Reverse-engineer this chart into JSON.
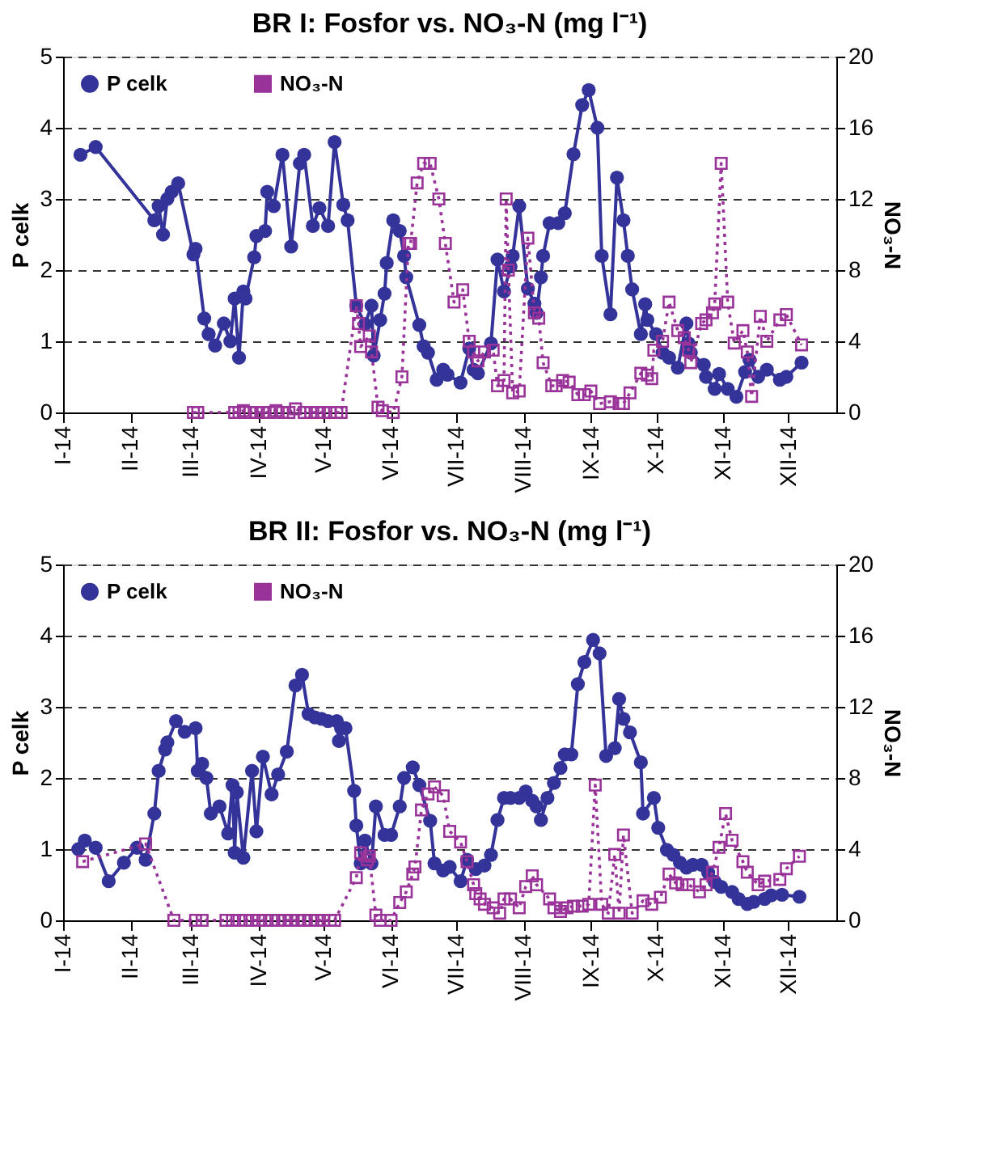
{
  "chart_data": [
    {
      "type": "line",
      "title": "BR I: Fosfor vs. NO₃-N  (mg l⁻¹)",
      "ylabel": "P celk",
      "y2label": "NO₃-N",
      "xlim": [
        "2014-01-01",
        "2014-12-23"
      ],
      "xticks": [
        {
          "value": "2014-01-01",
          "label": "I-14"
        },
        {
          "value": "2014-02-01",
          "label": "II-14"
        },
        {
          "value": "2014-03-01",
          "label": "III-14"
        },
        {
          "value": "2014-04-01",
          "label": "IV-14"
        },
        {
          "value": "2014-05-01",
          "label": "V-14"
        },
        {
          "value": "2014-06-01",
          "label": "VI-14"
        },
        {
          "value": "2014-07-01",
          "label": "VII-14"
        },
        {
          "value": "2014-08-01",
          "label": "VIII-14"
        },
        {
          "value": "2014-09-01",
          "label": "IX-14"
        },
        {
          "value": "2014-10-01",
          "label": "X-14"
        },
        {
          "value": "2014-11-01",
          "label": "XI-14"
        },
        {
          "value": "2014-12-01",
          "label": "XII-14"
        }
      ],
      "ylim": [
        0,
        5
      ],
      "yticks": [
        0,
        1,
        2,
        3,
        4,
        5
      ],
      "y2lim": [
        0,
        20
      ],
      "y2ticks": [
        0,
        4,
        8,
        12,
        16,
        20
      ],
      "grid": "y",
      "legend": "top left",
      "series": [
        {
          "name": "P celk",
          "color": "#333399",
          "marker": "circle",
          "line_style": "solid",
          "axis": "y",
          "x": [
            "2014-01-09",
            "2014-01-16",
            "2014-02-12",
            "2014-02-14",
            "2014-02-16",
            "2014-02-18",
            "2014-02-20",
            "2014-02-23",
            "2014-03-02",
            "2014-03-03",
            "2014-03-07",
            "2014-03-09",
            "2014-03-12",
            "2014-03-16",
            "2014-03-19",
            "2014-03-21",
            "2014-03-23",
            "2014-03-25",
            "2014-03-26",
            "2014-03-30",
            "2014-03-31",
            "2014-04-04",
            "2014-04-05",
            "2014-04-08",
            "2014-04-12",
            "2014-04-16",
            "2014-04-20",
            "2014-04-22",
            "2014-04-26",
            "2014-04-29",
            "2014-05-03",
            "2014-05-06",
            "2014-05-10",
            "2014-05-12",
            "2014-05-16",
            "2014-05-20",
            "2014-05-23",
            "2014-05-24",
            "2014-05-27",
            "2014-05-29",
            "2014-05-30",
            "2014-06-02",
            "2014-06-05",
            "2014-06-07",
            "2014-06-08",
            "2014-06-14",
            "2014-06-16",
            "2014-06-18",
            "2014-06-22",
            "2014-06-25",
            "2014-06-27",
            "2014-07-03",
            "2014-07-07",
            "2014-07-09",
            "2014-07-11",
            "2014-07-17",
            "2014-07-20",
            "2014-07-23",
            "2014-07-26",
            "2014-07-27",
            "2014-07-30",
            "2014-08-03",
            "2014-08-06",
            "2014-08-07",
            "2014-08-09",
            "2014-08-10",
            "2014-08-13",
            "2014-08-17",
            "2014-08-20",
            "2014-08-24",
            "2014-08-28",
            "2014-08-31",
            "2014-09-04",
            "2014-09-06",
            "2014-09-10",
            "2014-09-13",
            "2014-09-16",
            "2014-09-18",
            "2014-09-20",
            "2014-09-24",
            "2014-09-26",
            "2014-09-27",
            "2014-10-01",
            "2014-10-04",
            "2014-10-07",
            "2014-10-11",
            "2014-10-15",
            "2014-10-16",
            "2014-10-17",
            "2014-10-23",
            "2014-10-24",
            "2014-10-28",
            "2014-10-30",
            "2014-11-03",
            "2014-11-07",
            "2014-11-11",
            "2014-11-13",
            "2014-11-17",
            "2014-11-21",
            "2014-11-27",
            "2014-11-30",
            "2014-12-07"
          ],
          "values": [
            3.62,
            3.73,
            2.7,
            2.9,
            2.5,
            3.0,
            3.1,
            3.22,
            2.22,
            2.3,
            1.32,
            1.1,
            0.94,
            1.25,
            1.0,
            1.6,
            0.77,
            1.7,
            1.6,
            2.18,
            2.48,
            2.55,
            3.1,
            2.9,
            3.62,
            2.33,
            3.5,
            3.62,
            2.62,
            2.87,
            2.62,
            3.8,
            2.92,
            2.7,
            1.5,
            1.24,
            1.5,
            0.8,
            1.3,
            1.67,
            2.1,
            2.7,
            2.55,
            2.2,
            1.9,
            1.23,
            0.93,
            0.84,
            0.46,
            0.6,
            0.53,
            0.42,
            0.9,
            0.6,
            0.55,
            0.97,
            2.15,
            1.7,
            2.05,
            2.2,
            2.9,
            1.74,
            1.53,
            1.4,
            1.9,
            2.2,
            2.66,
            2.66,
            2.8,
            3.63,
            4.32,
            4.53,
            4.0,
            2.2,
            1.38,
            3.3,
            2.7,
            2.2,
            1.73,
            1.1,
            1.52,
            1.3,
            1.1,
            0.84,
            0.77,
            0.63,
            1.25,
            0.97,
            0.84,
            0.67,
            0.5,
            0.33,
            0.54,
            0.33,
            0.22,
            0.57,
            0.74,
            0.5,
            0.6,
            0.46,
            0.5,
            0.7
          ]
        },
        {
          "name": "NO₃-N",
          "color": "#993399",
          "marker": "square",
          "line_style": "dotted",
          "axis": "y2",
          "x": [
            "2014-03-02",
            "2014-03-04",
            "2014-03-21",
            "2014-03-23",
            "2014-03-25",
            "2014-03-28",
            "2014-03-31",
            "2014-04-03",
            "2014-04-06",
            "2014-04-09",
            "2014-04-12",
            "2014-04-15",
            "2014-04-18",
            "2014-04-22",
            "2014-04-25",
            "2014-04-28",
            "2014-05-01",
            "2014-05-04",
            "2014-05-07",
            "2014-05-09",
            "2014-05-16",
            "2014-05-17",
            "2014-05-18",
            "2014-05-22",
            "2014-05-23",
            "2014-05-26",
            "2014-05-28",
            "2014-06-02",
            "2014-06-06",
            "2014-06-09",
            "2014-06-10",
            "2014-06-13",
            "2014-06-16",
            "2014-06-19",
            "2014-06-23",
            "2014-06-26",
            "2014-06-30",
            "2014-07-04",
            "2014-07-07",
            "2014-07-09",
            "2014-07-11",
            "2014-07-14",
            "2014-07-18",
            "2014-07-20",
            "2014-07-23",
            "2014-07-24",
            "2014-07-25",
            "2014-07-27",
            "2014-07-30",
            "2014-08-03",
            "2014-08-06",
            "2014-08-08",
            "2014-08-10",
            "2014-08-14",
            "2014-08-16",
            "2014-08-19",
            "2014-08-22",
            "2014-08-26",
            "2014-08-29",
            "2014-09-01",
            "2014-09-05",
            "2014-09-10",
            "2014-09-14",
            "2014-09-16",
            "2014-09-19",
            "2014-09-24",
            "2014-09-27",
            "2014-09-29",
            "2014-09-30",
            "2014-10-04",
            "2014-10-07",
            "2014-10-11",
            "2014-10-14",
            "2014-10-16",
            "2014-10-17",
            "2014-10-22",
            "2014-10-24",
            "2014-10-27",
            "2014-10-28",
            "2014-10-31",
            "2014-11-03",
            "2014-11-06",
            "2014-11-10",
            "2014-11-12",
            "2014-11-14",
            "2014-11-18",
            "2014-11-21",
            "2014-11-27",
            "2014-11-30",
            "2014-12-07"
          ],
          "values": [
            0,
            0,
            0,
            0,
            0.1,
            0,
            0,
            0,
            0,
            0.1,
            0,
            0,
            0.2,
            0,
            0,
            0,
            0,
            0,
            0,
            0,
            6.0,
            5.0,
            3.7,
            4.3,
            3.4,
            0.3,
            0.1,
            0,
            2.0,
            9.5,
            9.5,
            12.9,
            14.0,
            14.0,
            12.0,
            9.5,
            6.2,
            6.9,
            4.0,
            3.4,
            2.9,
            3.4,
            3.5,
            1.5,
            1.8,
            12.0,
            8.0,
            1.1,
            1.2,
            9.8,
            5.6,
            5.3,
            2.8,
            1.5,
            1.5,
            1.8,
            1.7,
            1.0,
            1.0,
            1.2,
            0.5,
            0.6,
            0.5,
            0.5,
            1.1,
            2.2,
            2.1,
            1.9,
            3.5,
            4.0,
            6.2,
            4.6,
            4.2,
            3.5,
            2.8,
            5.0,
            5.2,
            5.6,
            6.1,
            14.0,
            6.2,
            3.9,
            4.6,
            3.4,
            0.9,
            5.4,
            4.0,
            5.2,
            5.5,
            3.8
          ]
        }
      ]
    },
    {
      "type": "line",
      "title": "BR II: Fosfor vs. NO₃-N  (mg l⁻¹)",
      "ylabel": "P celk",
      "y2label": "NO₃-N",
      "xlim": [
        "2014-01-01",
        "2014-12-23"
      ],
      "xticks": [
        {
          "value": "2014-01-01",
          "label": "I-14"
        },
        {
          "value": "2014-02-01",
          "label": "II-14"
        },
        {
          "value": "2014-03-01",
          "label": "III-14"
        },
        {
          "value": "2014-04-01",
          "label": "IV-14"
        },
        {
          "value": "2014-05-01",
          "label": "V-14"
        },
        {
          "value": "2014-06-01",
          "label": "VI-14"
        },
        {
          "value": "2014-07-01",
          "label": "VII-14"
        },
        {
          "value": "2014-08-01",
          "label": "VIII-14"
        },
        {
          "value": "2014-09-01",
          "label": "IX-14"
        },
        {
          "value": "2014-10-01",
          "label": "X-14"
        },
        {
          "value": "2014-11-01",
          "label": "XI-14"
        },
        {
          "value": "2014-12-01",
          "label": "XII-14"
        }
      ],
      "ylim": [
        0,
        5
      ],
      "yticks": [
        0,
        1,
        2,
        3,
        4,
        5
      ],
      "y2lim": [
        0,
        20
      ],
      "y2ticks": [
        0,
        4,
        8,
        12,
        16,
        20
      ],
      "grid": "y",
      "legend": "top left",
      "series": [
        {
          "name": "P celk",
          "color": "#333399",
          "marker": "circle",
          "line_style": "solid",
          "axis": "y",
          "x": [
            "2014-01-08",
            "2014-01-11",
            "2014-01-16",
            "2014-01-22",
            "2014-01-29",
            "2014-02-04",
            "2014-02-08",
            "2014-02-12",
            "2014-02-14",
            "2014-02-17",
            "2014-02-18",
            "2014-02-22",
            "2014-02-26",
            "2014-03-03",
            "2014-03-04",
            "2014-03-06",
            "2014-03-08",
            "2014-03-10",
            "2014-03-14",
            "2014-03-18",
            "2014-03-20",
            "2014-03-21",
            "2014-03-22",
            "2014-03-25",
            "2014-03-29",
            "2014-03-31",
            "2014-04-03",
            "2014-04-07",
            "2014-04-10",
            "2014-04-14",
            "2014-04-18",
            "2014-04-21",
            "2014-04-24",
            "2014-04-27",
            "2014-04-30",
            "2014-05-03",
            "2014-05-07",
            "2014-05-08",
            "2014-05-09",
            "2014-05-11",
            "2014-05-15",
            "2014-05-16",
            "2014-05-18",
            "2014-05-20",
            "2014-05-23",
            "2014-05-25",
            "2014-05-29",
            "2014-06-01",
            "2014-06-05",
            "2014-06-07",
            "2014-06-11",
            "2014-06-14",
            "2014-06-19",
            "2014-06-21",
            "2014-06-25",
            "2014-06-28",
            "2014-07-03",
            "2014-07-06",
            "2014-07-10",
            "2014-07-14",
            "2014-07-17",
            "2014-07-20",
            "2014-07-23",
            "2014-07-26",
            "2014-07-30",
            "2014-08-02",
            "2014-08-05",
            "2014-08-07",
            "2014-08-09",
            "2014-08-12",
            "2014-08-15",
            "2014-08-18",
            "2014-08-20",
            "2014-08-23",
            "2014-08-26",
            "2014-08-29",
            "2014-09-02",
            "2014-09-05",
            "2014-09-08",
            "2014-09-12",
            "2014-09-14",
            "2014-09-16",
            "2014-09-19",
            "2014-09-24",
            "2014-09-25",
            "2014-09-30",
            "2014-10-02",
            "2014-10-06",
            "2014-10-09",
            "2014-10-12",
            "2014-10-15",
            "2014-10-18",
            "2014-10-22",
            "2014-10-25",
            "2014-10-28",
            "2014-10-31",
            "2014-11-05",
            "2014-11-08",
            "2014-11-12",
            "2014-11-15",
            "2014-11-20",
            "2014-11-23",
            "2014-11-28",
            "2014-12-06"
          ],
          "values": [
            1.0,
            1.12,
            1.02,
            0.55,
            0.81,
            1.02,
            0.85,
            1.5,
            2.1,
            2.4,
            2.5,
            2.8,
            2.65,
            2.7,
            2.1,
            2.2,
            2.0,
            1.5,
            1.6,
            1.22,
            1.9,
            0.95,
            1.8,
            0.88,
            2.1,
            1.25,
            2.3,
            1.77,
            2.05,
            2.37,
            3.3,
            3.45,
            2.9,
            2.85,
            2.83,
            2.8,
            2.8,
            2.52,
            2.7,
            2.7,
            1.82,
            1.33,
            0.8,
            1.12,
            0.8,
            1.6,
            1.2,
            1.2,
            1.6,
            2.0,
            2.15,
            1.9,
            1.4,
            0.8,
            0.7,
            0.75,
            0.55,
            0.85,
            0.72,
            0.77,
            0.92,
            1.41,
            1.72,
            1.72,
            1.72,
            1.81,
            1.68,
            1.6,
            1.41,
            1.72,
            1.93,
            2.14,
            2.33,
            2.33,
            3.32,
            3.63,
            3.94,
            3.75,
            2.31,
            2.42,
            3.11,
            2.83,
            2.64,
            2.22,
            1.5,
            1.72,
            1.3,
            0.99,
            0.92,
            0.81,
            0.74,
            0.78,
            0.78,
            0.67,
            0.54,
            0.47,
            0.4,
            0.3,
            0.23,
            0.26,
            0.3,
            0.35,
            0.36,
            0.33
          ]
        },
        {
          "name": "NO₃-N",
          "color": "#993399",
          "marker": "square",
          "line_style": "dotted",
          "axis": "y2",
          "x": [
            "2014-01-10",
            "2014-02-08",
            "2014-02-21",
            "2014-03-03",
            "2014-03-06",
            "2014-03-17",
            "2014-03-20",
            "2014-03-23",
            "2014-03-26",
            "2014-03-29",
            "2014-04-01",
            "2014-04-04",
            "2014-04-07",
            "2014-04-10",
            "2014-04-13",
            "2014-04-16",
            "2014-04-19",
            "2014-04-22",
            "2014-04-25",
            "2014-04-28",
            "2014-05-01",
            "2014-05-04",
            "2014-05-06",
            "2014-05-16",
            "2014-05-18",
            "2014-05-21",
            "2014-05-22",
            "2014-05-25",
            "2014-05-27",
            "2014-06-01",
            "2014-06-05",
            "2014-06-08",
            "2014-06-11",
            "2014-06-12",
            "2014-06-15",
            "2014-06-18",
            "2014-06-21",
            "2014-06-25",
            "2014-06-28",
            "2014-07-03",
            "2014-07-06",
            "2014-07-09",
            "2014-07-10",
            "2014-07-12",
            "2014-07-14",
            "2014-07-18",
            "2014-07-21",
            "2014-07-23",
            "2014-07-26",
            "2014-07-30",
            "2014-08-02",
            "2014-08-05",
            "2014-08-07",
            "2014-08-13",
            "2014-08-15",
            "2014-08-18",
            "2014-08-21",
            "2014-08-24",
            "2014-08-28",
            "2014-08-31",
            "2014-09-03",
            "2014-09-06",
            "2014-09-09",
            "2014-09-12",
            "2014-09-14",
            "2014-09-16",
            "2014-09-20",
            "2014-09-25",
            "2014-09-29",
            "2014-10-03",
            "2014-10-07",
            "2014-10-10",
            "2014-10-13",
            "2014-10-16",
            "2014-10-21",
            "2014-10-24",
            "2014-10-27",
            "2014-10-30",
            "2014-11-02",
            "2014-11-05",
            "2014-11-10",
            "2014-11-12",
            "2014-11-17",
            "2014-11-20",
            "2014-11-27",
            "2014-11-30",
            "2014-12-06"
          ],
          "values": [
            3.3,
            4.3,
            0,
            0,
            0,
            0,
            0,
            0,
            0,
            0,
            0,
            0,
            0,
            0,
            0,
            0,
            0,
            0,
            0,
            0,
            0,
            0,
            0,
            2.4,
            3.8,
            3.4,
            3.6,
            0.3,
            0,
            0,
            1.0,
            1.6,
            2.6,
            3.0,
            6.2,
            7.1,
            7.5,
            7.0,
            5.0,
            4.4,
            3.3,
            2.0,
            1.5,
            1.2,
            0.9,
            0.7,
            0.4,
            1.2,
            1.2,
            0.7,
            1.9,
            2.5,
            2.0,
            1.2,
            0.7,
            0.5,
            0.7,
            0.8,
            0.8,
            0.9,
            7.6,
            0.9,
            0.4,
            3.7,
            0.4,
            4.8,
            0.4,
            1.1,
            0.9,
            1.3,
            2.6,
            2.1,
            2.0,
            2.0,
            1.6,
            2.0,
            2.7,
            4.1,
            6.0,
            4.5,
            3.3,
            2.7,
            2.0,
            2.2,
            2.3,
            2.9,
            3.6
          ]
        }
      ]
    }
  ]
}
